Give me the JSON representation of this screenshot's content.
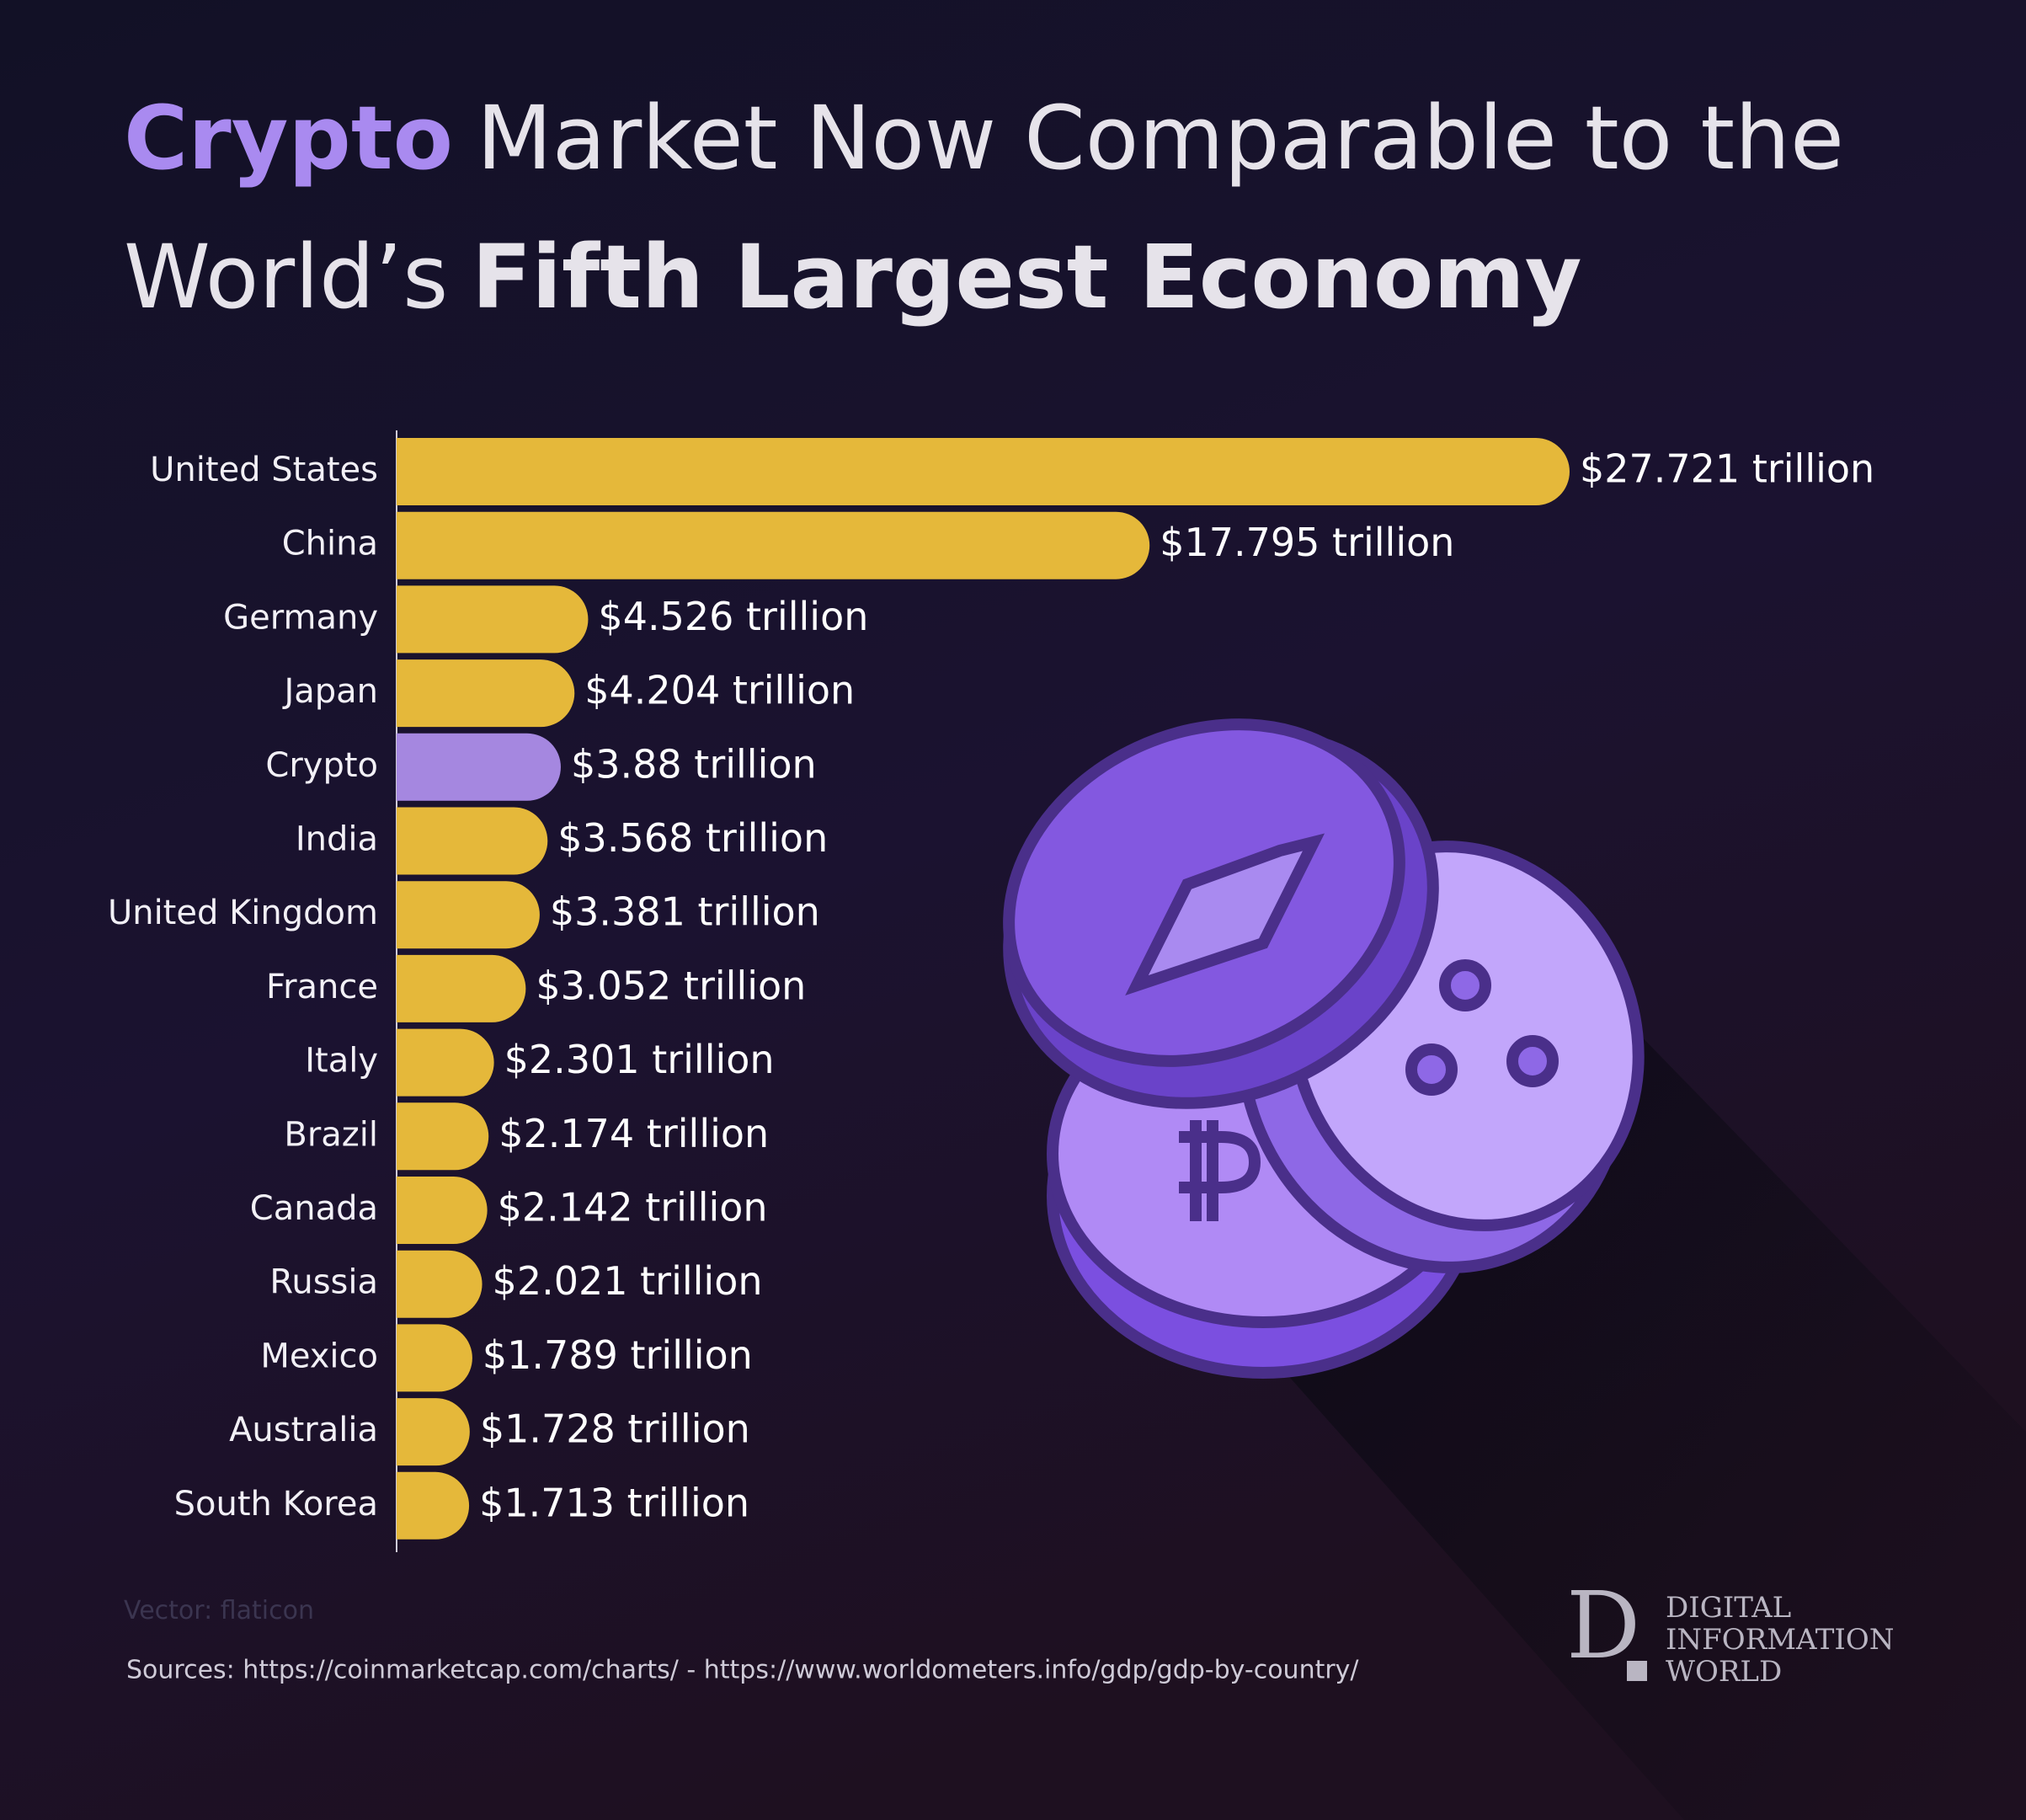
{
  "chart_data": {
    "type": "bar",
    "orientation": "horizontal",
    "title": [
      "Crypto",
      "Market Now Comparable to the",
      "World’s",
      "Fifth Largest Economy"
    ],
    "categories": [
      "United States",
      "China",
      "Germany",
      "Japan",
      "Crypto",
      "India",
      "United Kingdom",
      "France",
      "Italy",
      "Brazil",
      "Canada",
      "Russia",
      "Mexico",
      "Australia",
      "South Korea"
    ],
    "values": [
      27.721,
      17.795,
      4.526,
      4.204,
      3.88,
      3.568,
      3.381,
      3.052,
      2.301,
      2.174,
      2.142,
      2.021,
      1.789,
      1.728,
      1.713
    ],
    "value_labels": [
      "$27.721 trillion",
      "$17.795 trillion",
      "$4.526 trillion",
      "$4.204 trillion",
      "$3.88 trillion",
      "$3.568 trillion",
      "$3.381 trillion",
      "$3.052 trillion",
      "$2.301 trillion",
      "$2.174 trillion",
      "$2.142 trillion",
      "$2.021 trillion",
      "$1.789 trillion",
      "$1.728 trillion",
      "$1.713 trillion"
    ],
    "colors": [
      "#e5b83a",
      "#e5b83a",
      "#e5b83a",
      "#e5b83a",
      "#a587e0",
      "#e5b83a",
      "#e5b83a",
      "#e5b83a",
      "#e5b83a",
      "#e5b83a",
      "#e5b83a",
      "#e5b83a",
      "#e5b83a",
      "#e5b83a",
      "#e5b83a"
    ],
    "credit": "Vector: flaticon",
    "source": "Sources: https://coinmarketcap.com/charts/ - https://www.worldometers.info/gdp/gdp-by-country/",
    "logo": {
      "mark": "D",
      "lines": [
        "DIGITAL",
        "INFORMATION",
        "WORLD"
      ]
    }
  }
}
